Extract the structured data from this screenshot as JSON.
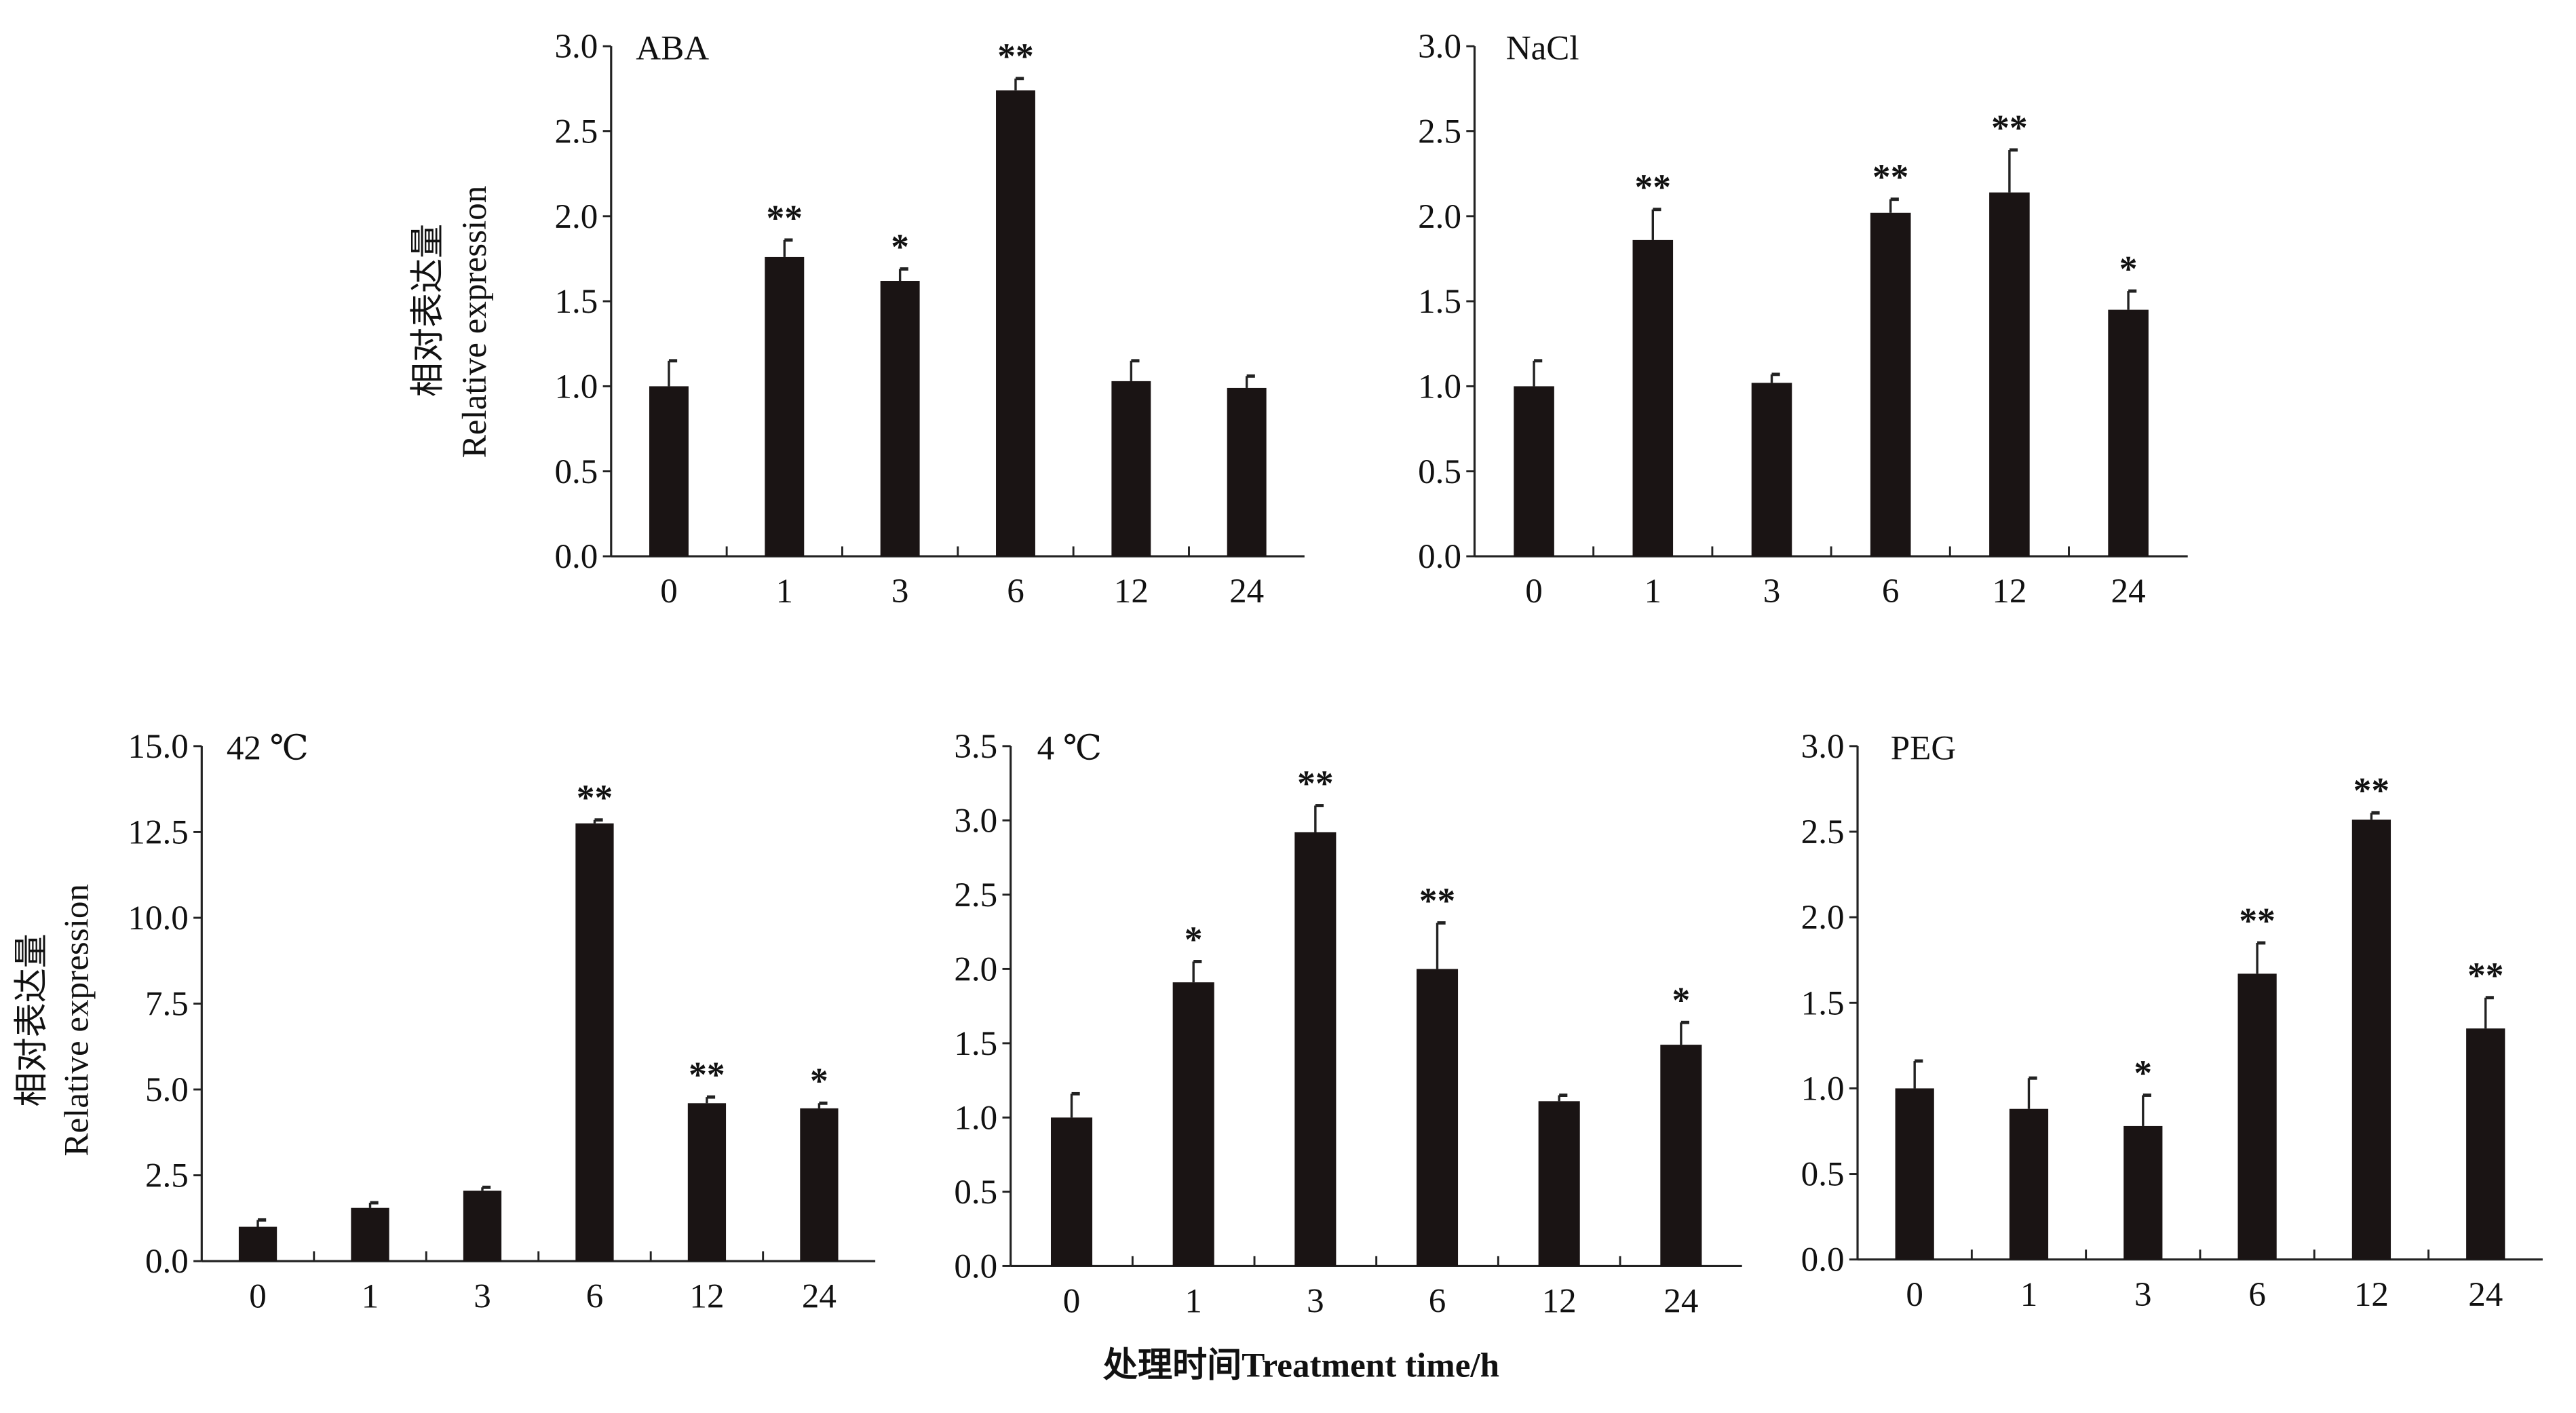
{
  "chart_data": [
    {
      "type": "bar",
      "title": "ABA",
      "categories": [
        "0",
        "1",
        "3",
        "6",
        "12",
        "24"
      ],
      "values": [
        1.0,
        1.76,
        1.62,
        2.74,
        1.03,
        0.99
      ],
      "errors": [
        0.15,
        0.1,
        0.07,
        0.07,
        0.12,
        0.07
      ],
      "significance": [
        "",
        "**",
        "*",
        "**",
        "",
        ""
      ],
      "ylim": [
        0,
        3.0
      ],
      "yticks": [
        "0.0",
        "0.5",
        "1.0",
        "1.5",
        "2.0",
        "2.5",
        "3.0"
      ]
    },
    {
      "type": "bar",
      "title": "NaCl",
      "categories": [
        "0",
        "1",
        "3",
        "6",
        "12",
        "24"
      ],
      "values": [
        1.0,
        1.86,
        1.02,
        2.02,
        2.14,
        1.45
      ],
      "errors": [
        0.15,
        0.18,
        0.05,
        0.08,
        0.25,
        0.11
      ],
      "significance": [
        "",
        "**",
        "",
        "**",
        "**",
        "*"
      ],
      "ylim": [
        0,
        3.0
      ],
      "yticks": [
        "0.0",
        "0.5",
        "1.0",
        "1.5",
        "2.0",
        "2.5",
        "3.0"
      ]
    },
    {
      "type": "bar",
      "title": "42 ℃",
      "categories": [
        "0",
        "1",
        "3",
        "6",
        "12",
        "24"
      ],
      "values": [
        1.0,
        1.55,
        2.05,
        12.75,
        4.6,
        4.45
      ],
      "errors": [
        0.2,
        0.15,
        0.1,
        0.1,
        0.18,
        0.15
      ],
      "significance": [
        "",
        "",
        "",
        "**",
        "**",
        "*"
      ],
      "ylim": [
        0,
        15.0
      ],
      "yticks": [
        "0.0",
        "2.5",
        "5.0",
        "7.5",
        "10.0",
        "12.5",
        "15.0"
      ]
    },
    {
      "type": "bar",
      "title": "4 ℃",
      "categories": [
        "0",
        "1",
        "3",
        "6",
        "12",
        "24"
      ],
      "values": [
        1.0,
        1.91,
        2.92,
        2.0,
        1.11,
        1.49
      ],
      "errors": [
        0.16,
        0.14,
        0.18,
        0.31,
        0.04,
        0.15
      ],
      "significance": [
        "",
        "*",
        "**",
        "**",
        "",
        "*"
      ],
      "ylim": [
        0,
        3.5
      ],
      "yticks": [
        "0.0",
        "0.5",
        "1.0",
        "1.5",
        "2.0",
        "2.5",
        "3.0",
        "3.5"
      ]
    },
    {
      "type": "bar",
      "title": "PEG",
      "categories": [
        "0",
        "1",
        "3",
        "6",
        "12",
        "24"
      ],
      "values": [
        1.0,
        0.88,
        0.78,
        1.67,
        2.57,
        1.35
      ],
      "errors": [
        0.16,
        0.18,
        0.18,
        0.18,
        0.04,
        0.18
      ],
      "significance": [
        "",
        "",
        "*",
        "**",
        "**",
        "**"
      ],
      "ylim": [
        0,
        3.0
      ],
      "yticks": [
        "0.0",
        "0.5",
        "1.0",
        "1.5",
        "2.0",
        "2.5",
        "3.0"
      ]
    }
  ],
  "ylabel_cn": "相对表达量",
  "ylabel_en": "Relative expression",
  "xlabel": "处理时间Treatment time/h",
  "bar_color": "#1a1414"
}
